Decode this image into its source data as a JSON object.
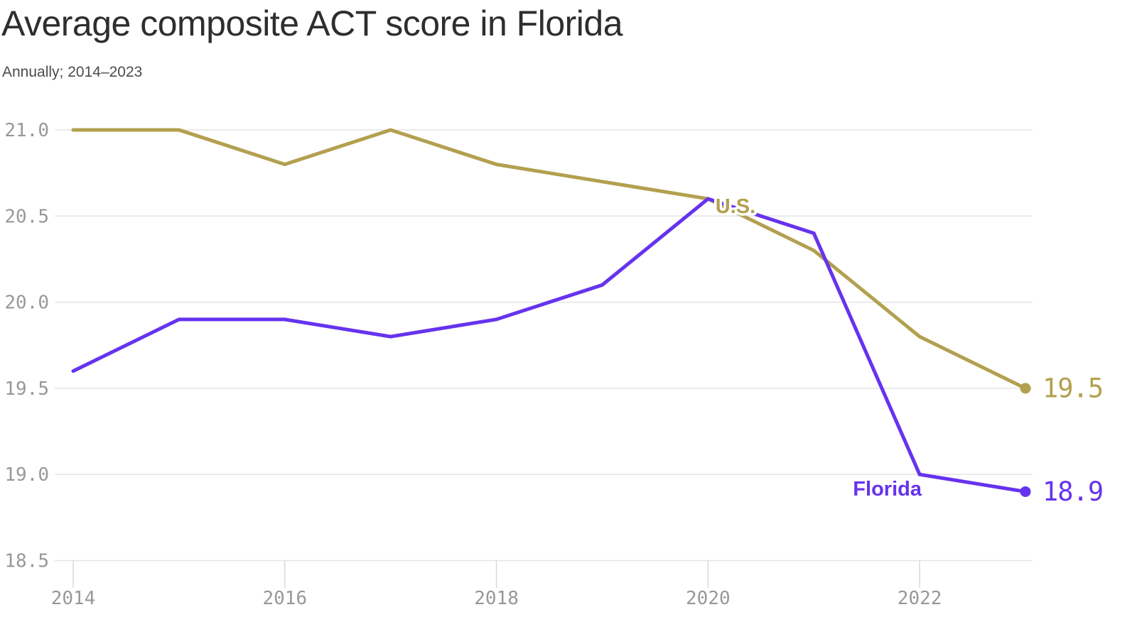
{
  "header": {
    "title": "Average composite ACT score in Florida",
    "subtitle": "Annually; 2014–2023"
  },
  "chart_data": {
    "type": "line",
    "title": "Average composite ACT score in Florida",
    "subtitle": "Annually; 2014–2023",
    "x": [
      2014,
      2015,
      2016,
      2017,
      2018,
      2019,
      2020,
      2021,
      2022,
      2023
    ],
    "series": [
      {
        "name": "U.S.",
        "color": "#b3a04f",
        "values": [
          21.0,
          21.0,
          20.8,
          21.0,
          20.8,
          20.7,
          20.6,
          20.3,
          19.8,
          19.5
        ],
        "end_label": "19.5",
        "annotation": {
          "year": 2020.07,
          "value": 20.56
        }
      },
      {
        "name": "Florida",
        "color": "#6633ee",
        "values": [
          19.6,
          19.9,
          19.9,
          19.8,
          19.9,
          20.1,
          20.6,
          20.4,
          19.0,
          18.9
        ],
        "end_label": "18.9",
        "annotation": {
          "year": 2021.37,
          "value": 18.92
        }
      }
    ],
    "xlim": [
      2014,
      2023
    ],
    "ylim": [
      18.5,
      21.0
    ],
    "y_tick_values": [
      21.0,
      20.5,
      20.0,
      19.5,
      19.0,
      18.5
    ],
    "y_tick_labels": [
      "21.0",
      "20.5",
      "20.0",
      "19.5",
      "19.0",
      "18.5"
    ],
    "x_tick_years": [
      2014,
      2016,
      2018,
      2020,
      2022
    ],
    "x_tick_labels": [
      "2014",
      "2016",
      "2018",
      "2020",
      "2022"
    ],
    "grid": "horizontal",
    "legend": "inline-labels",
    "xlabel": "",
    "ylabel": ""
  },
  "style": {
    "grid_color": "#e4e4e4",
    "tick_color": "#d9d9d9",
    "axis_label_color": "#989898",
    "title_color": "#2e2e2e",
    "subtitle_color": "#4c4c4c",
    "background": "#ffffff"
  }
}
